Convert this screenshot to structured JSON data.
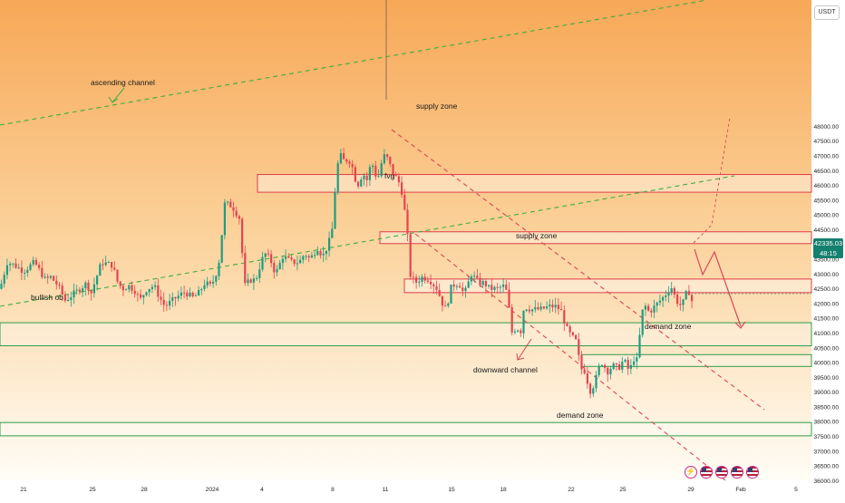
{
  "currency": "USDT",
  "current_price": {
    "value": "42335.03",
    "countdown": "48:15"
  },
  "colors": {
    "bg_top": "#f7a857",
    "bg_bottom": "#fffdf6",
    "candle_up": "#1f9c82",
    "candle_down": "#e54450",
    "zone_red": "#de3f4b",
    "zone_green": "#2e9e4a",
    "channel_green": "#3fae3f",
    "channel_red": "#d94757",
    "price_tag": "#15806e"
  },
  "annotations": {
    "ascending_channel": "ascending channel",
    "supply_zone_top": "supply zone",
    "fvg": "fvg",
    "supply_zone_mid": "supply zone",
    "bullish_ob": "bullish ob",
    "demand_zone_mid": "demand zone",
    "downward_channel": "downward channel",
    "demand_zone_bottom": "demand zone"
  },
  "events": [
    "lightning-event-icon",
    "us-flag-icon",
    "us-flag-icon",
    "us-flag-icon",
    "us-flag-icon"
  ],
  "chart_data": {
    "type": "candlestick",
    "title": "",
    "xlabel": "",
    "ylabel": "",
    "ylim": [
      36000,
      49100
    ],
    "y_ticks": [
      36000,
      36500,
      37000,
      37500,
      38000,
      38500,
      39000,
      39500,
      40000,
      40500,
      41000,
      41500,
      42000,
      42500,
      43000,
      43500,
      44000,
      44500,
      45000,
      45500,
      46000,
      46500,
      47000,
      47500,
      48000
    ],
    "y_tick_labels": [
      "36000.00",
      "36500.00",
      "37000.00",
      "37500.00",
      "38000.00",
      "38500.00",
      "39000.00",
      "39500.00",
      "40000.00",
      "40500.00",
      "41000.00",
      "41500.00",
      "42000.00",
      "42500.00",
      "43000.00",
      "43500.00",
      "44000.00",
      "44500.00",
      "45000.00",
      "45500.00",
      "46000.00",
      "46500.00",
      "47000.00",
      "47500.00",
      "48000.00"
    ],
    "x_ticks": [
      "21",
      "25",
      "28",
      "2024",
      "4",
      "8",
      "11",
      "15",
      "18",
      "22",
      "25",
      "29",
      "Feb",
      "5"
    ],
    "grid": false,
    "key_points": [
      [
        0,
        42500
      ],
      [
        8,
        43400
      ],
      [
        16,
        43300
      ],
      [
        26,
        43100
      ],
      [
        38,
        43400
      ],
      [
        50,
        42800
      ],
      [
        56,
        42900
      ],
      [
        64,
        42600
      ],
      [
        72,
        42100
      ],
      [
        84,
        42400
      ],
      [
        96,
        42700
      ],
      [
        100,
        42300
      ],
      [
        112,
        43400
      ],
      [
        124,
        43300
      ],
      [
        130,
        42700
      ],
      [
        135,
        42500
      ],
      [
        142,
        42600
      ],
      [
        150,
        42400
      ],
      [
        154,
        42100
      ],
      [
        162,
        42500
      ],
      [
        170,
        42600
      ],
      [
        176,
        42200
      ],
      [
        182,
        41900
      ],
      [
        186,
        42000
      ],
      [
        194,
        42200
      ],
      [
        204,
        42400
      ],
      [
        212,
        42200
      ],
      [
        218,
        42300
      ],
      [
        226,
        42700
      ],
      [
        232,
        42600
      ],
      [
        237,
        42850
      ],
      [
        242,
        43500
      ],
      [
        248,
        45400
      ],
      [
        256,
        45300
      ],
      [
        264,
        44900
      ],
      [
        270,
        42600
      ],
      [
        276,
        42800
      ],
      [
        282,
        42800
      ],
      [
        288,
        43400
      ],
      [
        292,
        43700
      ],
      [
        298,
        43500
      ],
      [
        304,
        43000
      ],
      [
        312,
        43600
      ],
      [
        322,
        43400
      ],
      [
        330,
        43400
      ],
      [
        336,
        43700
      ],
      [
        342,
        43500
      ],
      [
        350,
        43900
      ],
      [
        356,
        43600
      ],
      [
        362,
        44000
      ],
      [
        366,
        44400
      ],
      [
        370,
        46000
      ],
      [
        373,
        46800
      ],
      [
        376,
        47000
      ],
      [
        380,
        46800
      ],
      [
        384,
        46900
      ],
      [
        388,
        46700
      ],
      [
        392,
        46200
      ],
      [
        396,
        46000
      ],
      [
        400,
        46500
      ],
      [
        404,
        46100
      ],
      [
        408,
        46600
      ],
      [
        412,
        46700
      ],
      [
        416,
        46100
      ],
      [
        420,
        46700
      ],
      [
        424,
        47000
      ],
      [
        428,
        46900
      ],
      [
        432,
        46500
      ],
      [
        436,
        46300
      ],
      [
        440,
        46100
      ],
      [
        444,
        45700
      ],
      [
        446,
        45200
      ],
      [
        449,
        44500
      ],
      [
        452,
        43000
      ],
      [
        458,
        42700
      ],
      [
        466,
        42900
      ],
      [
        474,
        42800
      ],
      [
        482,
        42500
      ],
      [
        488,
        42000
      ],
      [
        492,
        41800
      ],
      [
        498,
        42600
      ],
      [
        506,
        42700
      ],
      [
        512,
        42300
      ],
      [
        520,
        43000
      ],
      [
        528,
        42700
      ],
      [
        534,
        42700
      ],
      [
        540,
        42500
      ],
      [
        548,
        42500
      ],
      [
        556,
        42600
      ],
      [
        560,
        42300
      ],
      [
        564,
        41000
      ],
      [
        570,
        41200
      ],
      [
        574,
        41000
      ],
      [
        578,
        41900
      ],
      [
        586,
        41800
      ],
      [
        596,
        41800
      ],
      [
        606,
        41900
      ],
      [
        614,
        41900
      ],
      [
        620,
        41700
      ],
      [
        624,
        41200
      ],
      [
        630,
        40900
      ],
      [
        636,
        40700
      ],
      [
        640,
        39800
      ],
      [
        646,
        39700
      ],
      [
        650,
        39000
      ],
      [
        656,
        39300
      ],
      [
        660,
        39800
      ],
      [
        664,
        40000
      ],
      [
        670,
        39700
      ],
      [
        676,
        39900
      ],
      [
        682,
        39800
      ],
      [
        688,
        40100
      ],
      [
        694,
        39700
      ],
      [
        700,
        40200
      ],
      [
        704,
        40000
      ],
      [
        706,
        41200
      ],
      [
        710,
        42000
      ],
      [
        716,
        41700
      ],
      [
        722,
        41900
      ],
      [
        728,
        42100
      ],
      [
        734,
        42300
      ],
      [
        740,
        42600
      ],
      [
        746,
        42100
      ],
      [
        752,
        41900
      ],
      [
        756,
        42300
      ],
      [
        760,
        42400
      ],
      [
        764,
        42000
      ],
      [
        766,
        42335
      ]
    ],
    "zones": [
      {
        "label": "supply zone",
        "kind": "supply",
        "low": 45770,
        "high": 46370
      },
      {
        "label": "fvg",
        "kind": "fvg",
        "low": 44030,
        "high": 44430
      },
      {
        "label": "supply zone",
        "kind": "supply",
        "low": 42370,
        "high": 42830
      },
      {
        "label": "bullish ob",
        "kind": "demand",
        "low": 40570,
        "high": 41350
      },
      {
        "label": "demand zone",
        "kind": "demand",
        "low": 39870,
        "high": 40270
      },
      {
        "label": "demand zone",
        "kind": "demand",
        "low": 37520,
        "high": 37970
      }
    ],
    "last_price": 42335.03
  }
}
